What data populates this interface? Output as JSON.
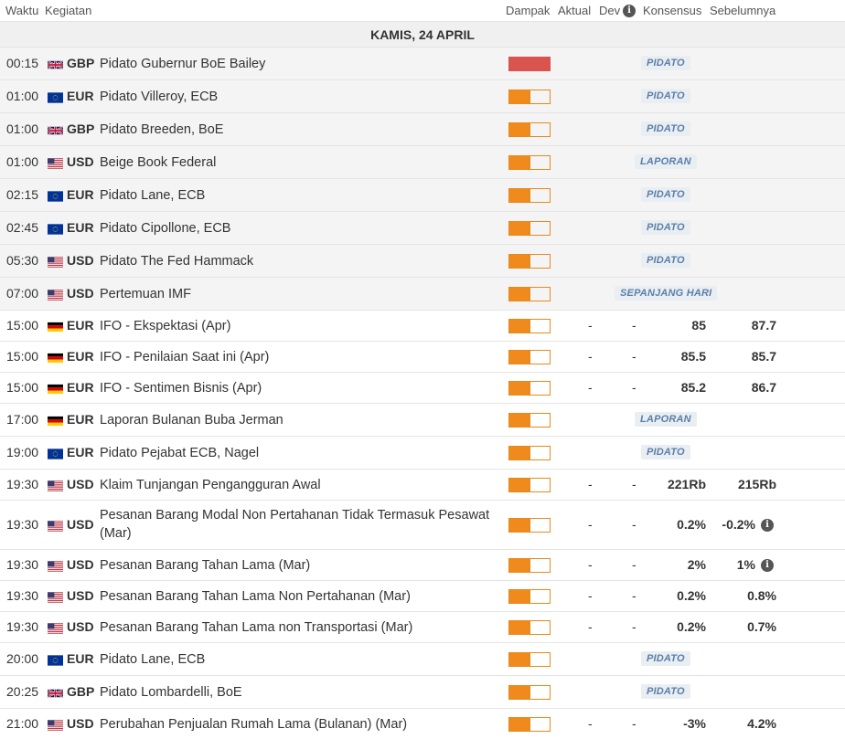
{
  "header": {
    "time": "Waktu",
    "event": "Kegiatan",
    "impact": "Dampak",
    "actual": "Aktual",
    "dev": "Dev",
    "consensus": "Konsensus",
    "previous": "Sebelumnya"
  },
  "day": "KAMIS, 24 APRIL",
  "colors": {
    "impact_high": "#d9534f",
    "impact_medium": "#f08a1c",
    "tag_text": "#5b7fa8"
  },
  "rows": [
    {
      "time": "00:15",
      "flag": "gb-flag-icon",
      "currency": "GBP",
      "event": "Pidato Gubernur BoE Bailey",
      "impact": "high",
      "tag": "PIDATO",
      "past": true
    },
    {
      "time": "01:00",
      "flag": "eu-flag-icon",
      "currency": "EUR",
      "event": "Pidato Villeroy, ECB",
      "impact": "medium",
      "tag": "PIDATO",
      "past": true
    },
    {
      "time": "01:00",
      "flag": "gb-flag-icon",
      "currency": "GBP",
      "event": "Pidato Breeden, BoE",
      "impact": "medium",
      "tag": "PIDATO",
      "past": true
    },
    {
      "time": "01:00",
      "flag": "us-flag-icon",
      "currency": "USD",
      "event": "Beige Book Federal",
      "impact": "medium",
      "tag": "LAPORAN",
      "past": true
    },
    {
      "time": "02:15",
      "flag": "eu-flag-icon",
      "currency": "EUR",
      "event": "Pidato Lane, ECB",
      "impact": "medium",
      "tag": "PIDATO",
      "past": true
    },
    {
      "time": "02:45",
      "flag": "eu-flag-icon",
      "currency": "EUR",
      "event": "Pidato Cipollone, ECB",
      "impact": "medium",
      "tag": "PIDATO",
      "past": true
    },
    {
      "time": "05:30",
      "flag": "us-flag-icon",
      "currency": "USD",
      "event": "Pidato The Fed Hammack",
      "impact": "medium",
      "tag": "PIDATO",
      "past": true
    },
    {
      "time": "07:00",
      "flag": "us-flag-icon",
      "currency": "USD",
      "event": "Pertemuan IMF",
      "impact": "medium",
      "tag": "SEPANJANG HARI",
      "past": true
    },
    {
      "time": "15:00",
      "flag": "de-flag-icon",
      "currency": "EUR",
      "event": "IFO - Ekspektasi (Apr)",
      "impact": "medium",
      "actual": "-",
      "dev": "-",
      "consensus": "85",
      "previous": "87.7"
    },
    {
      "time": "15:00",
      "flag": "de-flag-icon",
      "currency": "EUR",
      "event": "IFO - Penilaian Saat ini (Apr)",
      "impact": "medium",
      "actual": "-",
      "dev": "-",
      "consensus": "85.5",
      "previous": "85.7"
    },
    {
      "time": "15:00",
      "flag": "de-flag-icon",
      "currency": "EUR",
      "event": "IFO - Sentimen Bisnis (Apr)",
      "impact": "medium",
      "actual": "-",
      "dev": "-",
      "consensus": "85.2",
      "previous": "86.7"
    },
    {
      "time": "17:00",
      "flag": "de-flag-icon",
      "currency": "EUR",
      "event": "Laporan Bulanan Buba Jerman",
      "impact": "medium",
      "tag": "LAPORAN"
    },
    {
      "time": "19:00",
      "flag": "eu-flag-icon",
      "currency": "EUR",
      "event": "Pidato Pejabat ECB, Nagel",
      "impact": "medium",
      "tag": "PIDATO"
    },
    {
      "time": "19:30",
      "flag": "us-flag-icon",
      "currency": "USD",
      "event": "Klaim Tunjangan Pengangguran Awal",
      "impact": "medium",
      "actual": "-",
      "dev": "-",
      "consensus": "221Rb",
      "previous": "215Rb"
    },
    {
      "time": "19:30",
      "flag": "us-flag-icon",
      "currency": "USD",
      "event": "Pesanan Barang Modal Non Pertahanan Tidak Termasuk Pesawat (Mar)",
      "impact": "medium",
      "actual": "-",
      "dev": "-",
      "consensus": "0.2%",
      "previous": "-0.2%",
      "previous_info": true,
      "tall": true
    },
    {
      "time": "19:30",
      "flag": "us-flag-icon",
      "currency": "USD",
      "event": "Pesanan Barang Tahan Lama (Mar)",
      "impact": "medium",
      "actual": "-",
      "dev": "-",
      "consensus": "2%",
      "previous": "1%",
      "previous_info": true
    },
    {
      "time": "19:30",
      "flag": "us-flag-icon",
      "currency": "USD",
      "event": "Pesanan Barang Tahan Lama Non Pertahanan (Mar)",
      "impact": "medium",
      "actual": "-",
      "dev": "-",
      "consensus": "0.2%",
      "previous": "0.8%"
    },
    {
      "time": "19:30",
      "flag": "us-flag-icon",
      "currency": "USD",
      "event": "Pesanan Barang Tahan Lama non Transportasi (Mar)",
      "impact": "medium",
      "actual": "-",
      "dev": "-",
      "consensus": "0.2%",
      "previous": "0.7%"
    },
    {
      "time": "20:00",
      "flag": "eu-flag-icon",
      "currency": "EUR",
      "event": "Pidato Lane, ECB",
      "impact": "medium",
      "tag": "PIDATO"
    },
    {
      "time": "20:25",
      "flag": "gb-flag-icon",
      "currency": "GBP",
      "event": "Pidato Lombardelli, BoE",
      "impact": "medium",
      "tag": "PIDATO"
    },
    {
      "time": "21:00",
      "flag": "us-flag-icon",
      "currency": "USD",
      "event": "Perubahan Penjualan Rumah Lama (Bulanan) (Mar)",
      "impact": "medium",
      "actual": "-",
      "dev": "-",
      "consensus": "-3%",
      "previous": "4.2%"
    }
  ]
}
